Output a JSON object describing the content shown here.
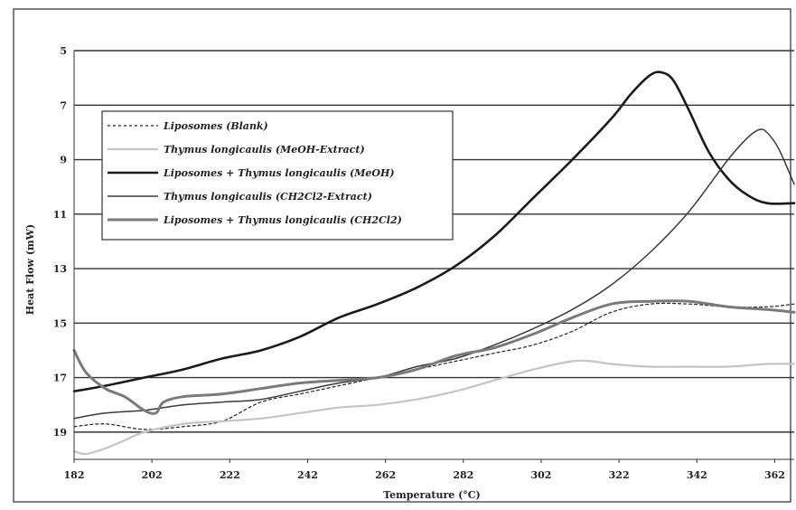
{
  "chart_data": {
    "type": "line",
    "title": "",
    "xlabel": "Temperature (°C)",
    "ylabel": "Heat Flow (mW)",
    "xlim": [
      182,
      367
    ],
    "ylim": [
      5,
      20
    ],
    "y_reversed": true,
    "grid": "horizontal",
    "legend_position": "upper-left",
    "x_ticks": [
      "182",
      "202",
      "222",
      "242",
      "262",
      "282",
      "302",
      "322",
      "342",
      "362"
    ],
    "y_ticks": [
      "5",
      "7",
      "9",
      "11",
      "13",
      "15",
      "17",
      "19"
    ],
    "colors": {
      "background": "#ffffff",
      "grid": "#333333",
      "frame": "#555555"
    },
    "series": [
      {
        "name": "Liposomes (Blank)",
        "color": "#222222",
        "width": 1.2,
        "dash": "3,3",
        "x": [
          182,
          190,
          200,
          210,
          220,
          230,
          240,
          250,
          260,
          270,
          280,
          290,
          300,
          310,
          320,
          330,
          340,
          350,
          360,
          367
        ],
        "y": [
          18.8,
          18.7,
          18.9,
          18.8,
          18.6,
          17.9,
          17.6,
          17.3,
          17.0,
          16.7,
          16.4,
          16.1,
          15.8,
          15.3,
          14.6,
          14.3,
          14.3,
          14.4,
          14.4,
          14.3
        ]
      },
      {
        "name": "Thymus longicaulis (MeOH-Extract)",
        "color": "#c4c4c4",
        "width": 2.2,
        "dash": "",
        "x": [
          182,
          185,
          190,
          195,
          200,
          210,
          220,
          230,
          240,
          250,
          260,
          270,
          280,
          290,
          300,
          310,
          315,
          320,
          330,
          340,
          350,
          360,
          367
        ],
        "y": [
          19.7,
          19.8,
          19.6,
          19.3,
          19.0,
          18.7,
          18.6,
          18.5,
          18.3,
          18.1,
          18.0,
          17.8,
          17.5,
          17.1,
          16.7,
          16.4,
          16.4,
          16.5,
          16.6,
          16.6,
          16.6,
          16.5,
          16.5
        ]
      },
      {
        "name": "Liposomes + Thymus longicaulis (MeOH)",
        "color": "#1a1a1a",
        "width": 2.6,
        "dash": "",
        "x": [
          182,
          190,
          200,
          210,
          220,
          230,
          240,
          250,
          260,
          270,
          280,
          290,
          300,
          310,
          320,
          325,
          330,
          333,
          336,
          340,
          345,
          350,
          355,
          360,
          367
        ],
        "y": [
          17.5,
          17.3,
          17.0,
          16.7,
          16.3,
          16.0,
          15.5,
          14.8,
          14.3,
          13.7,
          12.9,
          11.8,
          10.4,
          9.0,
          7.5,
          6.6,
          5.9,
          5.8,
          6.1,
          7.2,
          8.7,
          9.7,
          10.3,
          10.6,
          10.6
        ]
      },
      {
        "name": "Thymus longicaulis (CH2Cl2-Extract)",
        "color": "#3a3a3a",
        "width": 1.5,
        "dash": "",
        "x": [
          182,
          190,
          200,
          210,
          220,
          230,
          240,
          250,
          260,
          270,
          280,
          290,
          300,
          310,
          320,
          330,
          340,
          350,
          355,
          358,
          360,
          363,
          367
        ],
        "y": [
          18.5,
          18.3,
          18.2,
          18.0,
          17.9,
          17.8,
          17.5,
          17.2,
          17.0,
          16.6,
          16.3,
          15.8,
          15.2,
          14.5,
          13.6,
          12.4,
          10.9,
          9.0,
          8.2,
          7.9,
          8.0,
          8.6,
          9.9
        ]
      },
      {
        "name": "Liposomes + Thymus longicaulis (CH2Cl2)",
        "color": "#7a7a7a",
        "width": 3.0,
        "dash": "",
        "x": [
          182,
          185,
          190,
          195,
          200,
          203,
          205,
          210,
          220,
          230,
          240,
          250,
          260,
          270,
          280,
          290,
          300,
          310,
          320,
          330,
          340,
          350,
          360,
          367
        ],
        "y": [
          16.0,
          16.8,
          17.4,
          17.7,
          18.2,
          18.3,
          17.9,
          17.7,
          17.6,
          17.4,
          17.2,
          17.1,
          17.0,
          16.7,
          16.2,
          15.9,
          15.4,
          14.8,
          14.3,
          14.2,
          14.2,
          14.4,
          14.5,
          14.6
        ]
      }
    ]
  }
}
